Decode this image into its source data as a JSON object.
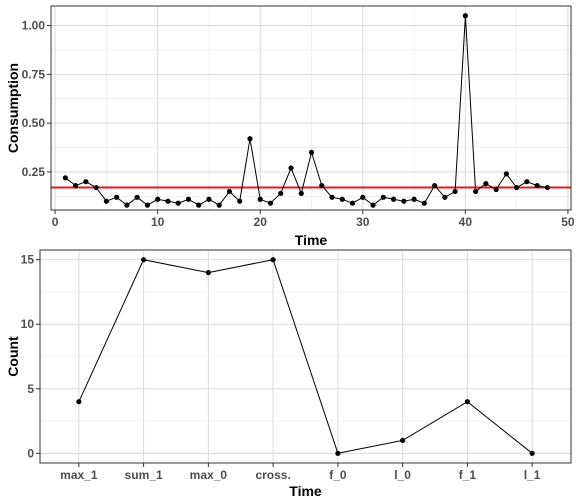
{
  "chart_data": [
    {
      "type": "line",
      "xlabel": "Time",
      "ylabel": "Consumption",
      "xlim": [
        -0.4,
        50.3
      ],
      "ylim": [
        0.055,
        1.1
      ],
      "x_ticks": [
        0,
        10,
        20,
        30,
        40,
        50
      ],
      "y_ticks": [
        0.25,
        0.5,
        0.75,
        1.0
      ],
      "y_tick_labels": [
        "0.25",
        "0.50",
        "0.75",
        "1.00"
      ],
      "grid": true,
      "series": [
        {
          "x": [
            1,
            2,
            3,
            4,
            5,
            6,
            7,
            8,
            9,
            10,
            11,
            12,
            13,
            14,
            15,
            16,
            17,
            18,
            19,
            20,
            21,
            22,
            23,
            24,
            25,
            26,
            27,
            28,
            29,
            30,
            31,
            32,
            33,
            34,
            35,
            36,
            37,
            38,
            39,
            40,
            41,
            42,
            43,
            44,
            45,
            46,
            47,
            48
          ],
          "values": [
            0.22,
            0.18,
            0.2,
            0.17,
            0.1,
            0.12,
            0.08,
            0.12,
            0.08,
            0.11,
            0.1,
            0.09,
            0.11,
            0.08,
            0.11,
            0.08,
            0.15,
            0.1,
            0.42,
            0.11,
            0.09,
            0.14,
            0.27,
            0.14,
            0.35,
            0.18,
            0.12,
            0.11,
            0.09,
            0.12,
            0.08,
            0.12,
            0.11,
            0.1,
            0.11,
            0.09,
            0.18,
            0.12,
            0.15,
            1.05,
            0.15,
            0.19,
            0.16,
            0.24,
            0.17,
            0.2,
            0.18,
            0.17
          ],
          "color": "#000000"
        }
      ],
      "reference_line": {
        "y": 0.17,
        "color": "#e31a1c"
      }
    },
    {
      "type": "line",
      "xlabel": "Time",
      "ylabel": "Count",
      "categories": [
        "max_1",
        "sum_1",
        "max_0",
        "cross.",
        "f_0",
        "l_0",
        "f_1",
        "l_1"
      ],
      "ylim": [
        -0.75,
        15.75
      ],
      "y_ticks": [
        0,
        5,
        10,
        15
      ],
      "y_tick_labels": [
        "0",
        "5",
        "10",
        "15"
      ],
      "grid": true,
      "series": [
        {
          "values": [
            4,
            15,
            14,
            15,
            0,
            1,
            4,
            0
          ],
          "color": "#000000"
        }
      ]
    }
  ]
}
